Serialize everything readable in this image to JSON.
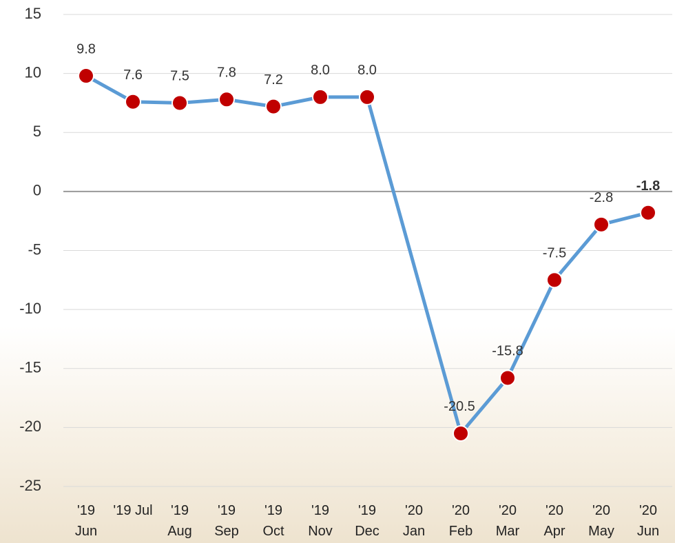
{
  "chart_data": {
    "type": "line",
    "categories": [
      "'19\nJun",
      "'19 Jul",
      "'19\nAug",
      "'19\nSep",
      "'19\nOct",
      "'19\nNov",
      "'19\nDec",
      "'20\nJan",
      "'20\nFeb",
      "'20\nMar",
      "'20\nApr",
      "'20\nMay",
      "'20\nJun"
    ],
    "series": [
      {
        "color": "#5b9bd5",
        "marker_color": "#c00000",
        "values": [
          9.8,
          7.6,
          7.5,
          7.8,
          7.2,
          8.0,
          8.0,
          null,
          -20.5,
          -15.8,
          -7.5,
          -2.8,
          -1.8
        ],
        "value_labels": [
          "9.8",
          "7.6",
          "7.5",
          "7.8",
          "7.2",
          "8.0",
          "8.0",
          null,
          "-20.5",
          "-15.8",
          "-7.5",
          "-2.8",
          "-1.8"
        ]
      }
    ],
    "ylim": [
      -25,
      15
    ],
    "yticks": [
      -25,
      -20,
      -15,
      -10,
      -5,
      0,
      5,
      10,
      15
    ],
    "grid": true
  }
}
